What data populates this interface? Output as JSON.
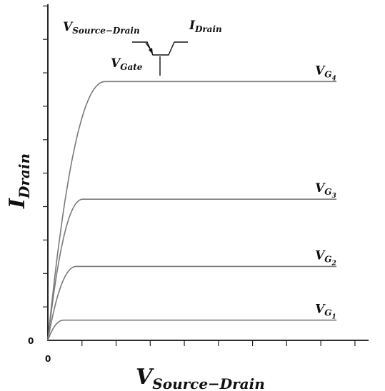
{
  "chart_data": {
    "type": "line",
    "title": "",
    "xlabel": {
      "main": "V",
      "sub": "Source−Drain"
    },
    "ylabel": {
      "main": "I",
      "sub": "Drain"
    },
    "xlim": [
      0,
      10
    ],
    "ylim": [
      0,
      10
    ],
    "x_tick_count": 9,
    "y_tick_count": 10,
    "x_origin_label": "0",
    "y_origin_label": "0",
    "grid": false,
    "legend": "none",
    "series": [
      {
        "name": {
          "main": "V",
          "sub": "G",
          "subsub": "1"
        },
        "saturation_x": 0.5,
        "saturation_y": 0.6,
        "x_end": 9.0
      },
      {
        "name": {
          "main": "V",
          "sub": "G",
          "subsub": "2"
        },
        "saturation_x": 0.9,
        "saturation_y": 2.2,
        "x_end": 9.0
      },
      {
        "name": {
          "main": "V",
          "sub": "G",
          "subsub": "3"
        },
        "saturation_x": 1.1,
        "saturation_y": 4.2,
        "x_end": 9.0
      },
      {
        "name": {
          "main": "V",
          "sub": "G",
          "subsub": "4"
        },
        "saturation_x": 1.8,
        "saturation_y": 7.7,
        "x_end": 9.0
      }
    ],
    "inset_symbol": {
      "source_drain": {
        "main": "V",
        "sub": "Source−Drain"
      },
      "drain": {
        "main": "I",
        "sub": "Drain"
      },
      "gate": {
        "main": "V",
        "sub": "Gate"
      }
    },
    "curve_color": "#7a7a7a",
    "axis_color": "#111111"
  }
}
